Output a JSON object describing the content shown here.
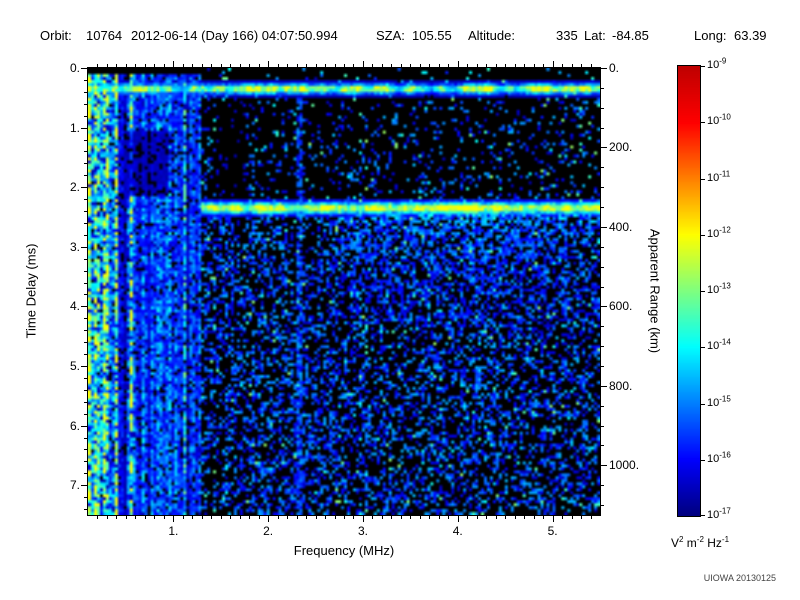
{
  "header": {
    "orbit_label": "Orbit:",
    "orbit_value": "10764",
    "datetime": "2012-06-14 (Day 166) 04:07:50.994",
    "sza_label": "SZA:",
    "sza_value": "105.55",
    "altitude_label": "Altitude:",
    "altitude_value": "335",
    "lat_label": "Lat:",
    "lat_value": "-84.85",
    "long_label": "Long:",
    "long_value": "63.39"
  },
  "footer": {
    "credit": "UIOWA 20130125"
  },
  "chart_data": {
    "type": "heatmap",
    "xlabel": "Frequency (MHz)",
    "x_range": [
      0.1,
      5.5
    ],
    "x_ticks": [
      1,
      2,
      3,
      4,
      5
    ],
    "x_tick_labels": [
      "1.",
      "2.",
      "3.",
      "4.",
      "5."
    ],
    "ylabel_left": "Time Delay (ms)",
    "y_range_ms": [
      0,
      7.5
    ],
    "y_ticks_ms": [
      0,
      1,
      2,
      3,
      4,
      5,
      6,
      7
    ],
    "y_tick_labels_left": [
      "0.",
      "1.",
      "2.",
      "3.",
      "4.",
      "5.",
      "6.",
      "7."
    ],
    "ylabel_right": "Apparent Range (km)",
    "y_range_km": [
      0,
      1125
    ],
    "y_ticks_km": [
      0,
      200,
      400,
      600,
      800,
      1000
    ],
    "y_tick_labels_right": [
      "0.",
      "200.",
      "400.",
      "600.",
      "800.",
      "1000."
    ],
    "grid": false,
    "background_color": "#000000",
    "colorscale": {
      "type": "jet",
      "max_exponent": -9,
      "min_exponent": -17,
      "tick_exponents": [
        -9,
        -10,
        -11,
        -12,
        -13,
        -14,
        -15,
        -16,
        -17
      ],
      "unit_parts": [
        [
          "V",
          "2"
        ],
        [
          "m",
          "-2"
        ],
        [
          "Hz",
          "-1"
        ]
      ]
    },
    "features": {
      "description": "Radar sounder ionogram: dense vertical plasma-oscillation stripes below ~1.3 MHz spanning all delays, a bright blobby echo band at ~0.35 ms delay across all frequencies, a second bright ionospheric/surface echo band at ~2.35 ms for f > 1.3 MHz with diffuse cyan scatter below it (strongest 3-4.5 MHz), and sparse blue speckle noise elsewhere on black background",
      "band1_delay_ms": 0.35,
      "band2_delay_ms": 2.35,
      "plasma_cutoff_mhz": 1.3
    },
    "render_seed": 7
  }
}
